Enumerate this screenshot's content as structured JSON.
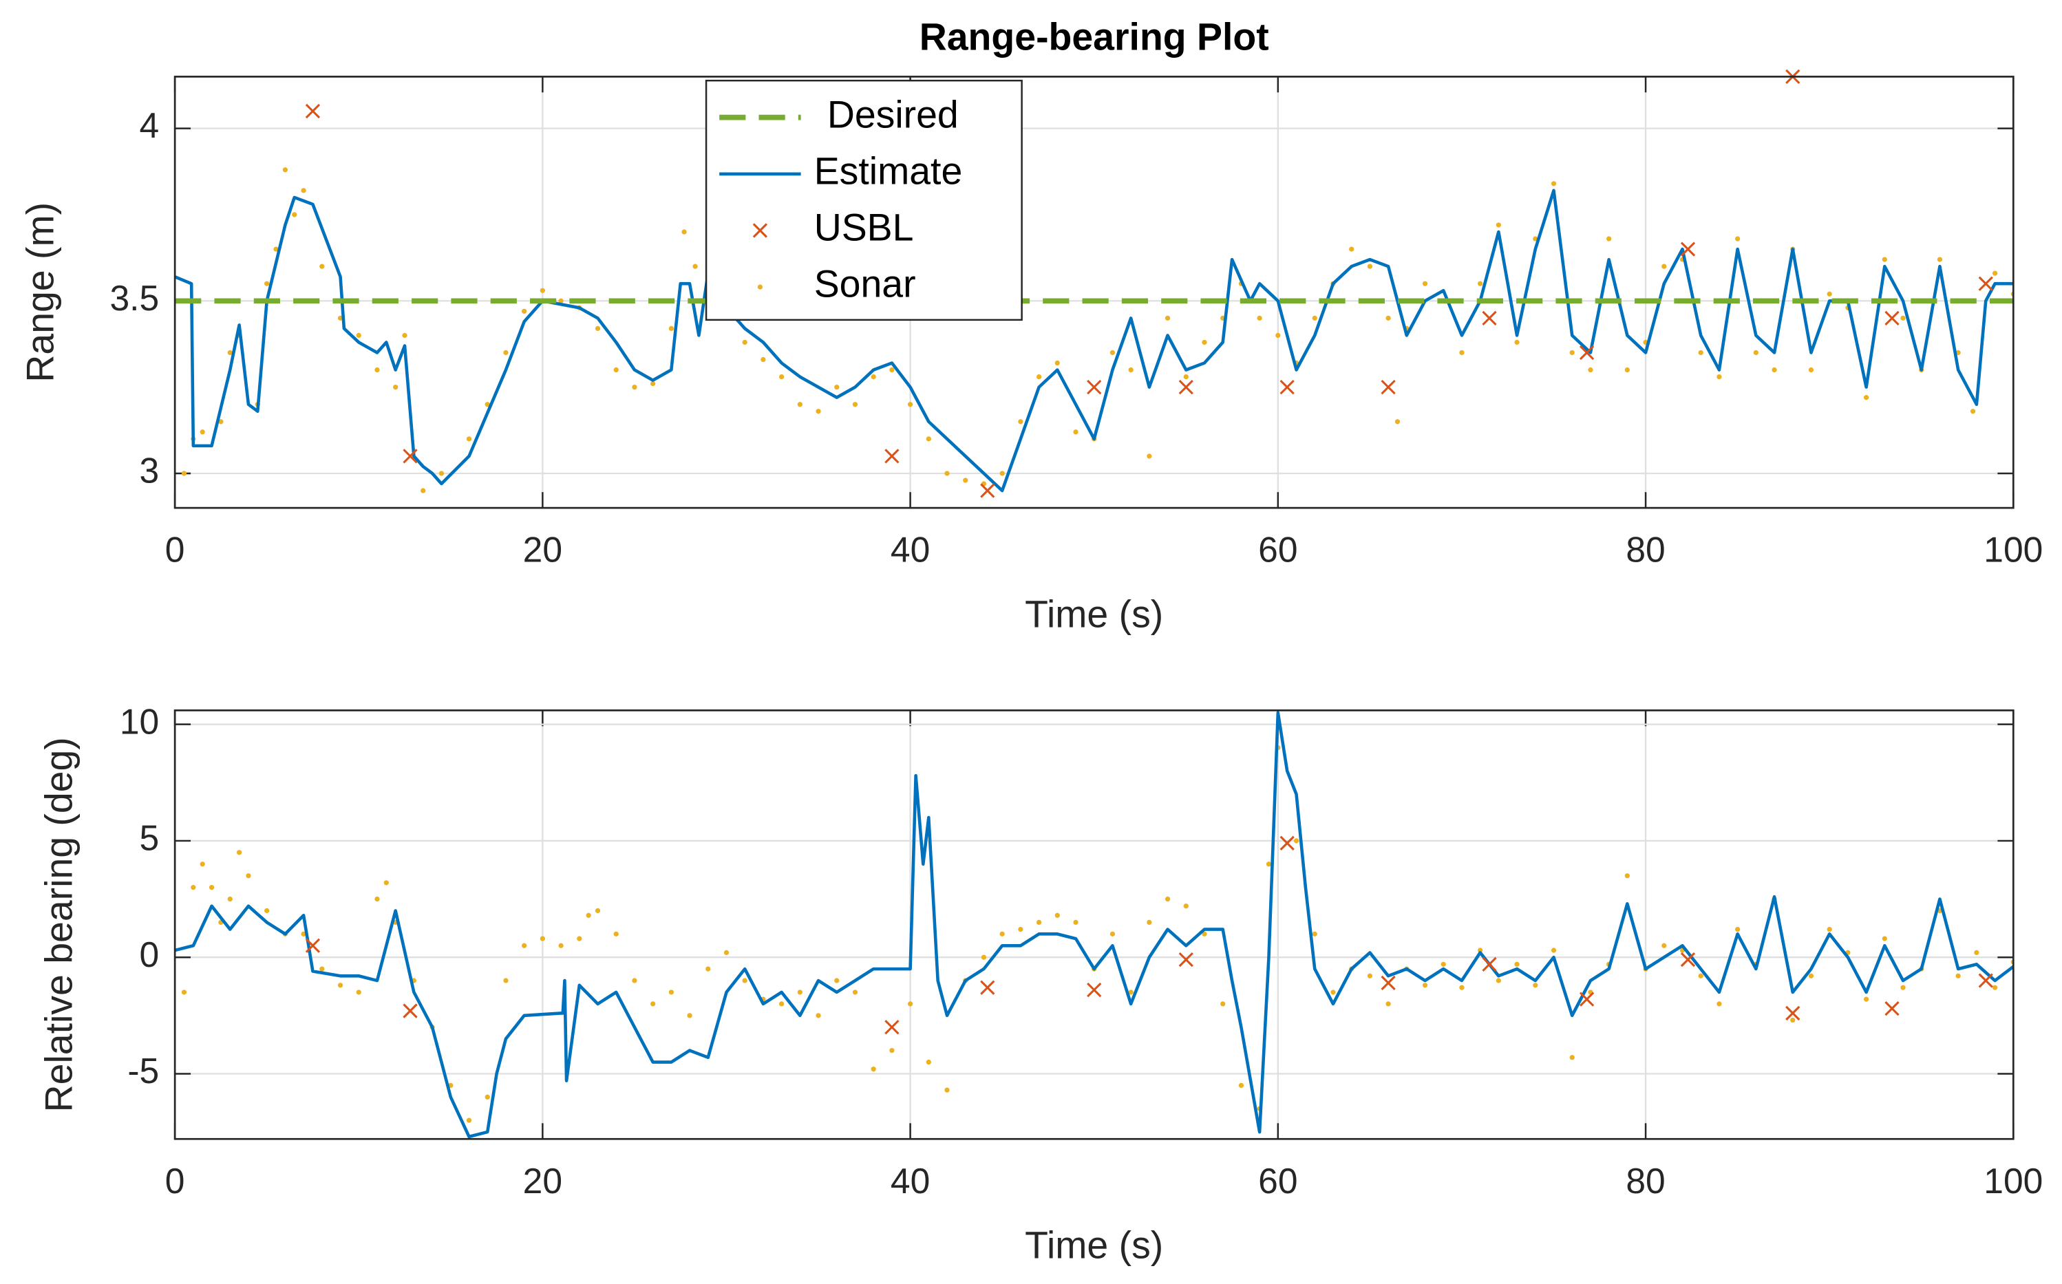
{
  "chart_data": [
    {
      "type": "line",
      "title": "Range-bearing Plot",
      "xlabel": "Time (s)",
      "ylabel": "Range (m)",
      "xlim": [
        0,
        100
      ],
      "xticks": [
        0,
        20,
        40,
        60,
        80,
        100
      ],
      "ylim": [
        2.9,
        4.15
      ],
      "yticks": [
        3,
        3.5,
        4
      ],
      "grid": true,
      "legend": "north",
      "series": [
        {
          "name": "Desired",
          "color": "#77ac30",
          "style": "dashed",
          "x": [
            0,
            100
          ],
          "values": [
            3.5,
            3.5
          ]
        },
        {
          "name": "Estimate",
          "color": "#0072bd",
          "style": "solid",
          "x": [
            0,
            0.9,
            1,
            2,
            3,
            3.5,
            4,
            4.5,
            5,
            6,
            6.5,
            7.5,
            9,
            9.2,
            10,
            11,
            11.5,
            12,
            12.5,
            13,
            13.5,
            14,
            14.5,
            16,
            18,
            19,
            20,
            22,
            23,
            24,
            25,
            26,
            27,
            27.5,
            28,
            28.5,
            29,
            30,
            31,
            32,
            33,
            34,
            35,
            36,
            37,
            38,
            39,
            40,
            41,
            42,
            43,
            44,
            45,
            46,
            47,
            48,
            49,
            50,
            51,
            52,
            53,
            54,
            55,
            56,
            57,
            57.5,
            58.5,
            59,
            60,
            61,
            62,
            63,
            64,
            65,
            66,
            67,
            68,
            69,
            70,
            71,
            72,
            73,
            74,
            75,
            76,
            77,
            78,
            79,
            80,
            81,
            82,
            83,
            84,
            85,
            86,
            87,
            88,
            89,
            90,
            91,
            92,
            93,
            94,
            95,
            96,
            97,
            98,
            98.5,
            99,
            100
          ],
          "values": [
            3.57,
            3.55,
            3.08,
            3.08,
            3.3,
            3.43,
            3.2,
            3.18,
            3.5,
            3.72,
            3.8,
            3.78,
            3.57,
            3.42,
            3.38,
            3.35,
            3.38,
            3.3,
            3.37,
            3.05,
            3.02,
            3,
            2.97,
            3.05,
            3.3,
            3.44,
            3.5,
            3.48,
            3.45,
            3.38,
            3.3,
            3.27,
            3.3,
            3.55,
            3.55,
            3.4,
            3.58,
            3.48,
            3.42,
            3.38,
            3.32,
            3.28,
            3.25,
            3.22,
            3.25,
            3.3,
            3.32,
            3.25,
            3.15,
            3.1,
            3.05,
            3.0,
            2.95,
            3.1,
            3.25,
            3.3,
            3.2,
            3.1,
            3.3,
            3.45,
            3.25,
            3.4,
            3.3,
            3.32,
            3.38,
            3.62,
            3.5,
            3.55,
            3.5,
            3.3,
            3.4,
            3.55,
            3.6,
            3.62,
            3.6,
            3.4,
            3.5,
            3.53,
            3.4,
            3.5,
            3.7,
            3.4,
            3.65,
            3.82,
            3.4,
            3.35,
            3.62,
            3.4,
            3.35,
            3.55,
            3.65,
            3.4,
            3.3,
            3.65,
            3.4,
            3.35,
            3.65,
            3.35,
            3.5,
            3.5,
            3.25,
            3.6,
            3.5,
            3.3,
            3.6,
            3.3,
            3.2,
            3.5,
            3.55,
            3.55
          ]
        },
        {
          "name": "USBL",
          "color": "#d95319",
          "style": "cross",
          "x": [
            7.5,
            12.8,
            39,
            44.2,
            50,
            55,
            60.5,
            66,
            71.5,
            76.8,
            82.3,
            88,
            93.4,
            98.5
          ],
          "values": [
            4.05,
            3.05,
            3.05,
            2.95,
            3.25,
            3.25,
            3.25,
            3.25,
            3.45,
            3.35,
            3.65,
            4.15,
            3.45,
            3.55
          ]
        },
        {
          "name": "Sonar",
          "color": "#edb120",
          "style": "dot",
          "x": [
            0.5,
            1,
            1.5,
            2.5,
            3,
            3.5,
            4.5,
            5,
            5.5,
            6,
            6.5,
            7,
            8,
            9,
            10,
            11,
            12,
            12.5,
            13.5,
            14.5,
            16,
            17,
            18,
            19,
            20,
            21,
            22,
            23,
            24,
            25,
            26,
            27,
            27.7,
            28.3,
            29,
            30,
            31,
            32,
            33,
            34,
            35,
            36,
            37,
            38,
            39,
            40,
            41,
            42,
            43,
            44,
            45,
            46,
            47,
            48,
            49,
            50,
            51,
            52,
            53,
            54,
            55,
            56,
            57,
            58,
            59,
            60,
            61,
            62,
            63,
            64,
            65,
            66,
            66.5,
            67,
            68,
            69,
            70,
            71,
            72,
            73,
            74,
            75,
            76,
            77,
            78,
            79,
            80,
            81,
            82,
            83,
            84,
            85,
            86,
            87,
            88,
            89,
            90,
            91,
            92,
            93,
            94,
            95,
            96,
            97,
            97.8,
            99,
            100
          ],
          "values": [
            3.0,
            3.1,
            3.12,
            3.15,
            3.35,
            3.4,
            3.2,
            3.55,
            3.65,
            3.88,
            3.75,
            3.82,
            3.6,
            3.45,
            3.4,
            3.3,
            3.25,
            3.4,
            2.95,
            3.0,
            3.1,
            3.2,
            3.35,
            3.47,
            3.53,
            3.5,
            3.48,
            3.42,
            3.3,
            3.25,
            3.26,
            3.42,
            3.7,
            3.6,
            3.55,
            3.45,
            3.38,
            3.33,
            3.28,
            3.2,
            3.18,
            3.25,
            3.2,
            3.28,
            3.3,
            3.2,
            3.1,
            3.0,
            2.98,
            2.97,
            3.0,
            3.15,
            3.28,
            3.32,
            3.12,
            3.1,
            3.35,
            3.3,
            3.05,
            3.45,
            3.28,
            3.38,
            3.45,
            3.55,
            3.45,
            3.4,
            3.32,
            3.45,
            3.55,
            3.65,
            3.6,
            3.45,
            3.15,
            3.42,
            3.55,
            3.5,
            3.35,
            3.55,
            3.72,
            3.38,
            3.68,
            3.84,
            3.35,
            3.3,
            3.68,
            3.3,
            3.38,
            3.6,
            3.62,
            3.35,
            3.28,
            3.68,
            3.35,
            3.3,
            3.65,
            3.3,
            3.52,
            3.48,
            3.22,
            3.62,
            3.45,
            3.3,
            3.62,
            3.35,
            3.18,
            3.58,
            3.52
          ]
        }
      ]
    },
    {
      "type": "line",
      "xlabel": "Time (s)",
      "ylabel": "Relative bearing (deg)",
      "xlim": [
        0,
        100
      ],
      "xticks": [
        0,
        20,
        40,
        60,
        80,
        100
      ],
      "ylim": [
        -7.8,
        10.6
      ],
      "yticks": [
        -5,
        0,
        5,
        10
      ],
      "grid": true,
      "series": [
        {
          "color": "#0072bd",
          "style": "solid",
          "x": [
            0,
            1,
            2,
            3,
            4,
            5,
            6,
            7,
            7.5,
            9,
            10,
            11,
            12,
            13,
            14,
            15,
            16,
            17,
            17.5,
            18,
            19,
            21,
            21.1,
            21.2,
            21.3,
            22,
            23,
            24,
            25,
            26,
            27,
            28,
            29,
            30,
            31,
            32,
            33,
            34,
            35,
            36,
            37,
            38,
            39,
            40,
            40.3,
            40.7,
            41,
            41.5,
            42,
            43,
            44,
            45,
            46,
            47,
            48,
            49,
            50,
            51,
            52,
            53,
            54,
            55,
            56,
            57,
            57.5,
            58,
            59,
            59.5,
            60,
            60.5,
            61,
            61.5,
            62,
            63,
            64,
            65,
            66,
            67,
            68,
            69,
            70,
            71,
            72,
            73,
            74,
            75,
            76,
            77,
            78,
            79,
            80,
            81,
            82,
            83,
            84,
            85,
            86,
            87,
            88,
            89,
            90,
            91,
            92,
            93,
            94,
            95,
            96,
            97,
            98,
            99,
            100
          ],
          "values": [
            0.3,
            0.5,
            2.2,
            1.2,
            2.2,
            1.5,
            1.0,
            1.8,
            -0.6,
            -0.8,
            -0.8,
            -1.0,
            2.0,
            -1.5,
            -3,
            -6,
            -7.7,
            -7.5,
            -5,
            -3.5,
            -2.5,
            -2.4,
            -2.4,
            -1,
            -5.3,
            -1.2,
            -2,
            -1.5,
            -3,
            -4.5,
            -4.5,
            -4,
            -4.3,
            -1.5,
            -0.5,
            -2,
            -1.5,
            -2.5,
            -1,
            -1.5,
            -1,
            -0.5,
            -0.5,
            -0.5,
            7.8,
            4,
            6,
            -1,
            -2.5,
            -1,
            -0.5,
            0.5,
            0.5,
            1,
            1,
            0.8,
            -0.5,
            0.5,
            -2,
            0,
            1.2,
            0.5,
            1.2,
            1.2,
            -1,
            -3,
            -7.5,
            0,
            10.5,
            8,
            7,
            3,
            -0.5,
            -2,
            -0.5,
            0.2,
            -0.8,
            -0.5,
            -1,
            -0.5,
            -1,
            0.2,
            -0.8,
            -0.5,
            -1,
            0,
            -2.5,
            -1,
            -0.5,
            2.3,
            -0.5,
            0,
            0.5,
            -0.5,
            -1.5,
            1,
            -0.5,
            2.6,
            -1.5,
            -0.5,
            1,
            0,
            -1.5,
            0.5,
            -1,
            -0.5,
            2.5,
            -0.5,
            -0.3,
            -1,
            -0.4
          ]
        },
        {
          "color": "#d95319",
          "style": "cross",
          "x": [
            7.5,
            12.8,
            39,
            44.2,
            50,
            55,
            60.5,
            66,
            71.5,
            76.8,
            82.3,
            88,
            93.4,
            98.5
          ],
          "values": [
            0.5,
            -2.3,
            -3,
            -1.3,
            -1.4,
            -0.1,
            4.9,
            -1.1,
            -0.3,
            -1.8,
            -0.1,
            -2.4,
            -2.2,
            -1
          ]
        },
        {
          "color": "#edb120",
          "style": "dot",
          "x": [
            0.5,
            1,
            1.5,
            2,
            2.5,
            3,
            3.5,
            4,
            5,
            6,
            7,
            8,
            9,
            10,
            11,
            11.5,
            12,
            13,
            14,
            15,
            16,
            17,
            18,
            19,
            20,
            21,
            22,
            22.5,
            23,
            24,
            25,
            26,
            27,
            28,
            29,
            30,
            31,
            32,
            33,
            34,
            35,
            36,
            37,
            38,
            39,
            40,
            41,
            42,
            43,
            44,
            45,
            46,
            47,
            48,
            49,
            50,
            51,
            52,
            53,
            54,
            55,
            56,
            57,
            58,
            59,
            59.5,
            60,
            61,
            62,
            63,
            64,
            65,
            66,
            67,
            68,
            69,
            70,
            71,
            72,
            73,
            74,
            75,
            76,
            77,
            78,
            79,
            80,
            81,
            82,
            83,
            84,
            85,
            86,
            87,
            88,
            89,
            90,
            91,
            92,
            93,
            94,
            95,
            96,
            97,
            98,
            99,
            100
          ],
          "values": [
            -1.5,
            3,
            4,
            3,
            1.5,
            2.5,
            4.5,
            3.5,
            2,
            1,
            1,
            -0.5,
            -1.2,
            -1.5,
            2.5,
            3.2,
            1.5,
            -1,
            -3,
            -5.5,
            -7,
            -6,
            -1,
            0.5,
            0.8,
            0.5,
            0.8,
            1.8,
            2,
            1,
            -1,
            -2,
            -1.5,
            -2.5,
            -0.5,
            0.2,
            -1,
            -1.8,
            -2,
            -1.5,
            -2.5,
            -1,
            -1.5,
            -4.8,
            -4,
            -2,
            -4.5,
            -5.7,
            -1,
            0,
            1,
            1.2,
            1.5,
            1.8,
            1.5,
            -0.5,
            1,
            -1.5,
            1.5,
            2.5,
            2.2,
            1,
            -2,
            -5.5,
            -6.5,
            4,
            9,
            5,
            1,
            -1.5,
            -0.5,
            -0.8,
            -2,
            -0.5,
            -1.2,
            -0.3,
            -1.3,
            0.3,
            -1,
            -0.3,
            -1.2,
            0.3,
            -4.3,
            -1.5,
            -0.3,
            3.5,
            -0.5,
            0.5,
            0.3,
            -0.8,
            -2,
            1.2,
            -0.3,
            2.5,
            -2.7,
            -0.8,
            1.2,
            0.2,
            -1.8,
            0.8,
            -1.3,
            -0.5,
            2,
            -0.8,
            0.2,
            -1.3,
            -0.2
          ]
        }
      ]
    }
  ]
}
